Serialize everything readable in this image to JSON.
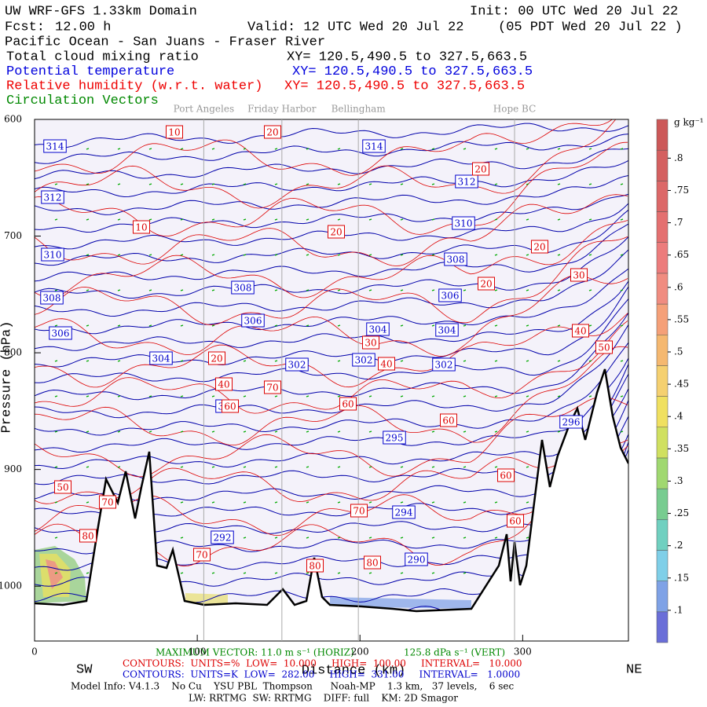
{
  "header": {
    "title": "UW WRF-GFS 1.33km Domain",
    "init": "Init: 00 UTC Wed 20 Jul 22",
    "fcst_label": "Fcst:",
    "fcst": "12.00 h",
    "valid": "Valid: 12 UTC Wed 20 Jul 22",
    "valid_local": "(05 PDT Wed 20 Jul 22  )",
    "region": "Pacific Ocean - San Juans - Fraser River"
  },
  "fields": [
    {
      "name": "Total cloud mixing ratio",
      "xy": "XY= 120.5,490.5 to 327.5,663.5",
      "color": "#000000"
    },
    {
      "name": "Potential temperature",
      "xy": "XY= 120.5,490.5 to 327.5,663.5",
      "color": "#0000dd"
    },
    {
      "name": "Relative humidity (w.r.t. water)",
      "xy": "XY= 120.5,490.5 to 327.5,663.5",
      "color": "#ee0000"
    },
    {
      "name": "Circulation Vectors",
      "color": "#008800"
    }
  ],
  "chart_data": {
    "type": "cross-section",
    "y_label": "Pressure (hPa)",
    "x_label": "Distance (km)",
    "left_label": "SW",
    "right_label": "NE",
    "xlim": [
      0,
      365
    ],
    "xticks": [
      0,
      100,
      200,
      300
    ],
    "ylim": [
      600,
      1047
    ],
    "yticks": [
      600,
      700,
      800,
      900,
      1000
    ],
    "locations": [
      {
        "name": "Port Angeles",
        "x": 104
      },
      {
        "name": "Friday Harbor",
        "x": 152
      },
      {
        "name": "Bellingham",
        "x": 199
      },
      {
        "name": "Hope BC",
        "x": 295
      }
    ],
    "theta_labels": [
      314,
      314,
      312,
      312,
      310,
      310,
      308,
      308,
      308,
      306,
      306,
      306,
      304,
      304,
      304,
      302,
      302,
      302,
      300,
      296,
      295,
      294,
      292,
      290
    ],
    "rh_labels": [
      10,
      10,
      20,
      20,
      20,
      20,
      20,
      20,
      30,
      30,
      40,
      40,
      40,
      50,
      50,
      60,
      60,
      60,
      60,
      60,
      70,
      70,
      70,
      70,
      80,
      80,
      80
    ],
    "colorbar": {
      "unit": "g kg⁻¹",
      "clim": [
        0.05,
        0.86
      ],
      "ticks": [
        {
          "value": 0.1,
          "label": ".1"
        },
        {
          "value": 0.15,
          "label": ".15"
        },
        {
          "value": 0.2,
          "label": ".2"
        },
        {
          "value": 0.25,
          "label": ".25"
        },
        {
          "value": 0.3,
          "label": ".3"
        },
        {
          "value": 0.35,
          "label": ".35"
        },
        {
          "value": 0.4,
          "label": ".4"
        },
        {
          "value": 0.45,
          "label": ".45"
        },
        {
          "value": 0.5,
          "label": ".5"
        },
        {
          "value": 0.55,
          "label": ".55"
        },
        {
          "value": 0.6,
          "label": ".6"
        },
        {
          "value": 0.65,
          "label": ".65"
        },
        {
          "value": 0.7,
          "label": ".7"
        },
        {
          "value": 0.75,
          "label": ".75"
        },
        {
          "value": 0.8,
          "label": ".8"
        }
      ]
    }
  },
  "footer": {
    "max_vector": "MAXIMUM VECTOR:  11.0 m s⁻¹ (HORIZ)",
    "max_vert": "125.8 dPa s⁻¹ (VERT)",
    "contours_rh": "CONTOURS:  UNITS=%  LOW=  10.000     HIGH=  100.00     INTERVAL=   10.000",
    "contours_theta": "CONTOURS:  UNITS=K  LOW=  282.00     HIGH=  331.00     INTERVAL=   1.0000",
    "model_info": "Model Info: V4.1.3    No Cu    YSU PBL  Thompson      Noah-MP    1.3 km,   37 levels,    6 sec",
    "model_info2": "LW: RRTMG  SW: RRTMG    DIFF: full    KM: 2D Smagor"
  }
}
